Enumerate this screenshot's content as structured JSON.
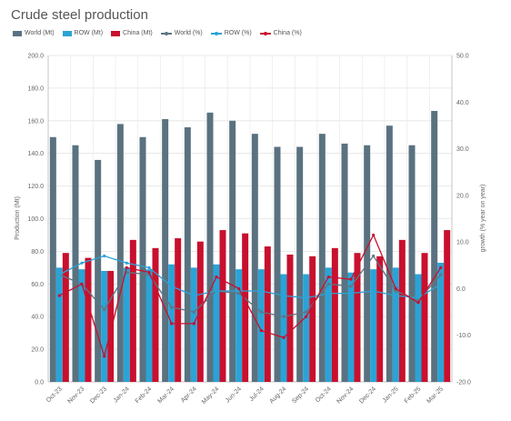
{
  "chart_data": {
    "type": "bar",
    "title": "Crude steel production",
    "categories": [
      "Oct-23",
      "Nov-23",
      "Dec-23",
      "Jan-24",
      "Feb-24",
      "Mar-24",
      "Apr-24",
      "May-24",
      "Jun-24",
      "Jul-24",
      "Aug-24",
      "Sep-24",
      "Oct-24",
      "Nov-24",
      "Dec-24",
      "Jan-25",
      "Feb-25",
      "Mar-25"
    ],
    "ylabel": "Production (Mt)",
    "y2label": "growth (% year on year)",
    "ylim": [
      0,
      200
    ],
    "y2lim": [
      -20,
      50
    ],
    "yticks": [
      "0.0",
      "20.0",
      "40.0",
      "60.0",
      "80.0",
      "100.0",
      "120.0",
      "140.0",
      "160.0",
      "180.0",
      "200.0"
    ],
    "y2ticks": [
      "-20.0",
      "-10.0",
      "0.0",
      "10.0",
      "20.0",
      "30.0",
      "40.0",
      "50.0"
    ],
    "grid": true,
    "legend_position": "top-left",
    "bar_series": [
      {
        "name": "World (Mt)",
        "color": "#5a7280",
        "values": [
          150,
          145,
          136,
          158,
          150,
          161,
          156,
          165,
          160,
          152,
          144,
          144,
          152,
          146,
          145,
          157,
          145,
          166
        ]
      },
      {
        "name": "ROW (Mt)",
        "color": "#2aa3d6",
        "values": [
          70,
          69,
          68,
          70,
          69,
          72,
          70,
          72,
          69,
          69,
          66,
          66,
          70,
          67,
          69,
          70,
          66,
          73
        ]
      },
      {
        "name": "China (Mt)",
        "color": "#c8102e",
        "values": [
          79,
          76,
          68,
          87,
          82,
          88,
          86,
          93,
          91,
          83,
          78,
          77,
          82,
          79,
          77,
          87,
          79,
          93
        ]
      }
    ],
    "line_series": [
      {
        "name": "World (%)",
        "color": "#5f7583",
        "values": [
          3.0,
          1.0,
          -4.5,
          3.5,
          3.0,
          -4.0,
          -5.0,
          -0.5,
          -1.0,
          -5.0,
          -6.0,
          -5.0,
          1.0,
          0.5,
          7.0,
          -0.5,
          -2.5,
          3.0
        ]
      },
      {
        "name": "ROW (%)",
        "color": "#2aa3d6",
        "values": [
          3.0,
          5.5,
          7.0,
          5.5,
          4.5,
          0.5,
          -1.5,
          -0.5,
          -0.5,
          -0.5,
          -1.5,
          -2.0,
          -1.0,
          -1.0,
          -0.5,
          -1.5,
          -2.0,
          1.0
        ]
      },
      {
        "name": "China (%)",
        "color": "#c8102e",
        "values": [
          -1.5,
          1.0,
          -14.5,
          4.5,
          3.5,
          -7.5,
          -7.5,
          2.5,
          0.0,
          -9.0,
          -10.5,
          -6.0,
          2.5,
          2.0,
          11.5,
          0.0,
          -3.0,
          4.5
        ]
      }
    ]
  }
}
